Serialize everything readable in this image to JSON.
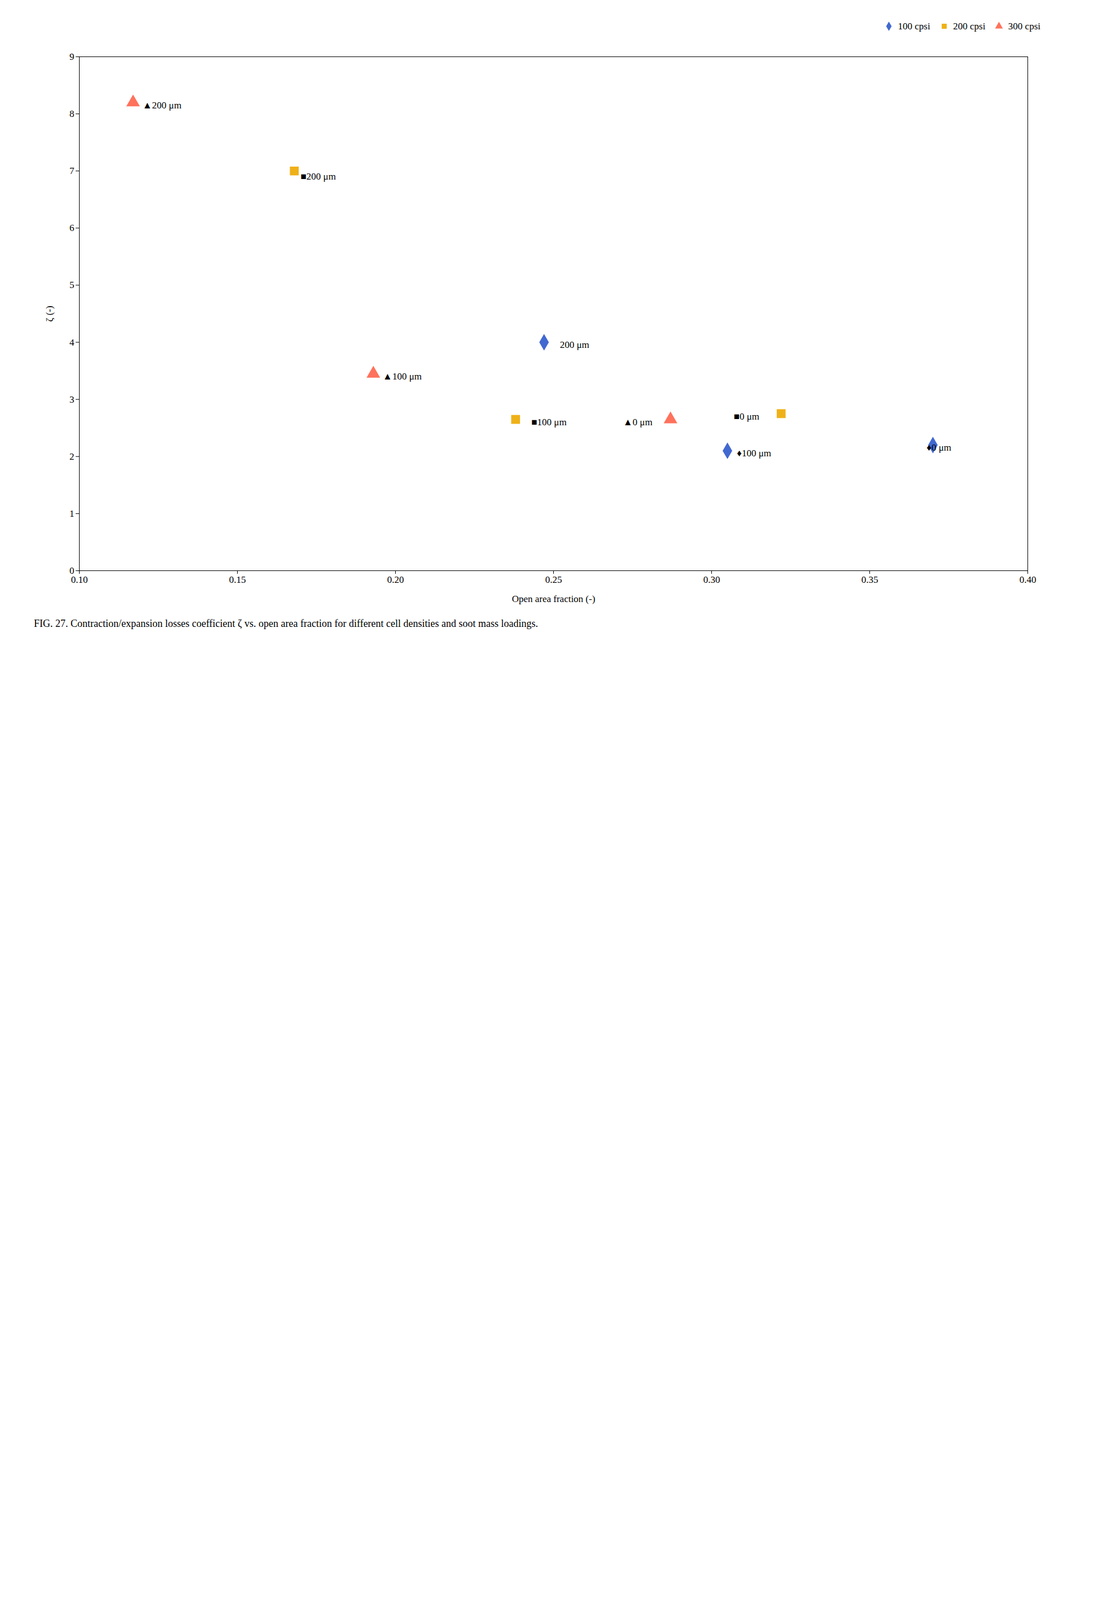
{
  "chart_data": {
    "type": "scatter",
    "caption": "FIG. 27. Contraction/expansion losses coefficient ζ vs. open area fraction for different cell densities and soot mass loadings.",
    "xlabel": "Open area fraction (-)",
    "ylabel": "ζ (-)",
    "series": [
      {
        "name": "100 cpsi",
        "marker": "diamond",
        "x": [
          0.37,
          0.305,
          0.247
        ],
        "values": [
          2.2,
          2.1,
          4.0
        ]
      },
      {
        "name": "200 cpsi",
        "marker": "square",
        "x": [
          0.322,
          0.238,
          0.168
        ],
        "values": [
          2.75,
          2.65,
          7.0
        ]
      },
      {
        "name": "300 cpsi",
        "marker": "triangle",
        "x": [
          0.287,
          0.193,
          0.117
        ],
        "values": [
          2.65,
          3.45,
          8.2
        ]
      }
    ],
    "annotations": [
      {
        "text": "▲200 μm",
        "x": 0.12,
        "y": 8.1
      },
      {
        "text": "▲100 μm",
        "x": 0.196,
        "y": 3.35
      },
      {
        "text": "▲0 μm",
        "x": 0.272,
        "y": 2.55
      },
      {
        "text": "■200 μm",
        "x": 0.17,
        "y": 6.85
      },
      {
        "text": "■100 μm",
        "x": 0.243,
        "y": 2.55
      },
      {
        "text": "■0 μm",
        "x": 0.307,
        "y": 2.65
      },
      {
        "text": "200 μm",
        "x": 0.252,
        "y": 3.9
      },
      {
        "text": "♦100 μm",
        "x": 0.308,
        "y": 2.0
      },
      {
        "text": "♦0 μm",
        "x": 0.368,
        "y": 2.1
      }
    ],
    "xlim": [
      0.1,
      0.4
    ],
    "ylim": [
      0,
      9
    ],
    "xticks": [
      {
        "value": 0.1,
        "label": "0.10"
      },
      0.15,
      {
        "value": 0.2,
        "label": "0.20"
      },
      0.25,
      {
        "value": 0.3,
        "label": "0.30"
      },
      0.35,
      {
        "value": 0.4,
        "label": "0.40"
      }
    ],
    "yticks": [
      0,
      1,
      2,
      3,
      4,
      5,
      6,
      7,
      8,
      9
    ],
    "grid": false,
    "legend": "upper right"
  }
}
